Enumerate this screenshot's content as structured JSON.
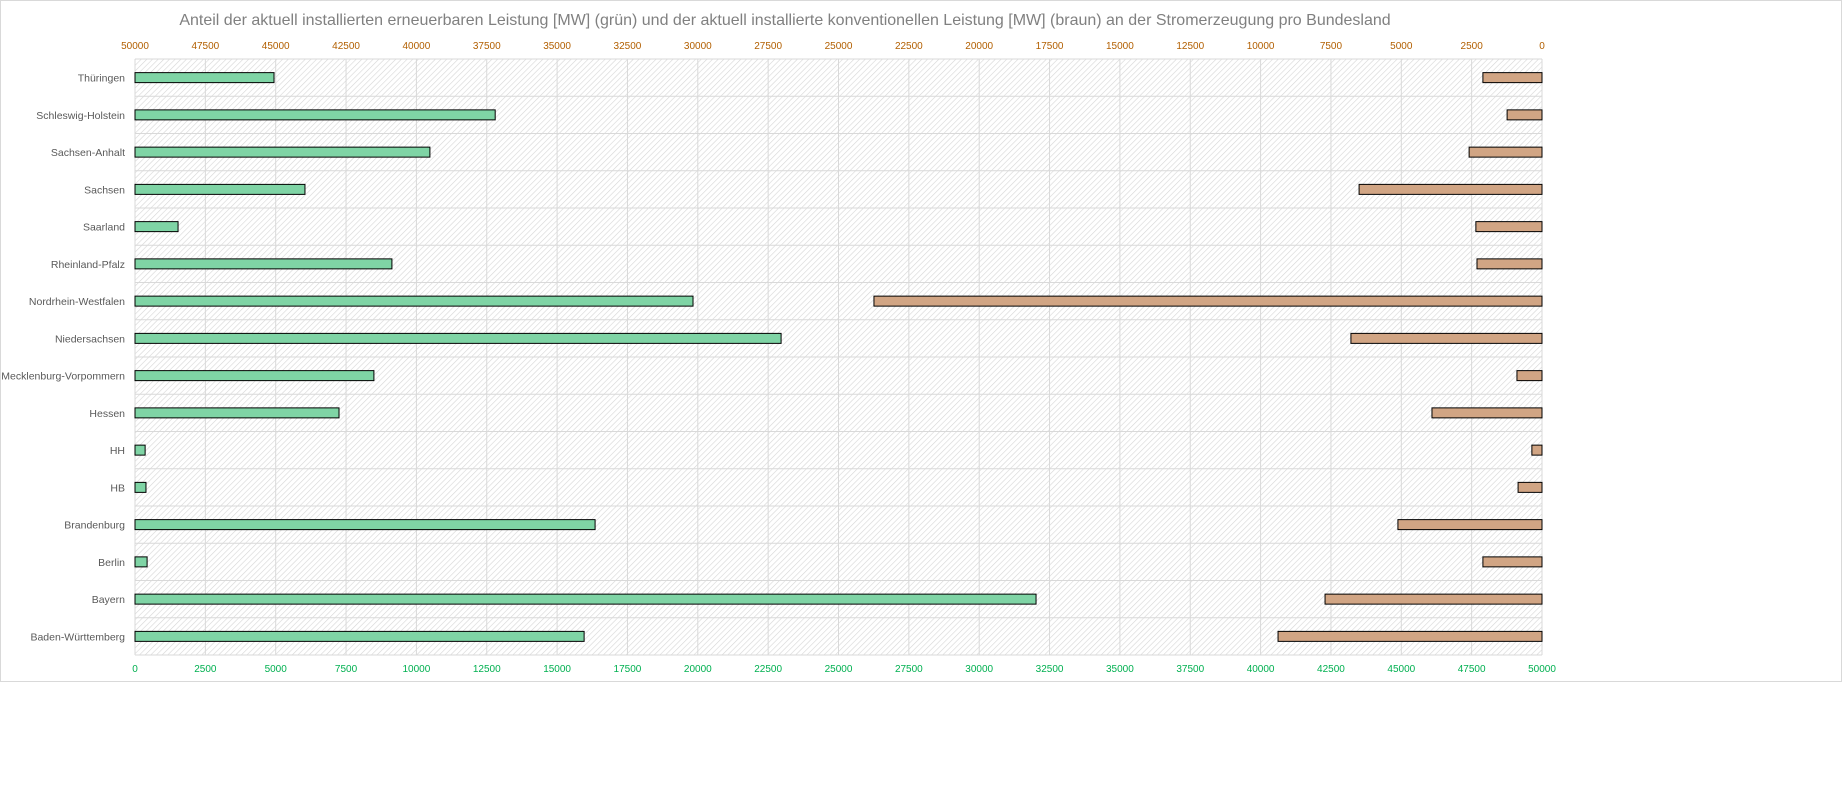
{
  "chart_data": {
    "type": "bar",
    "orientation": "horizontal",
    "title": "Anteil der aktuell installierten erneuerbaren Leistung [MW] (grün) und der aktuell installierte konventionellen Leistung [MW] (braun)  an der Stromerzeugung pro Bundesland",
    "categories": [
      "Thüringen",
      "Schleswig-Holstein",
      "Sachsen-Anhalt",
      "Sachsen",
      "Saarland",
      "Rheinland-Pfalz",
      "Nordrhein-Westfalen",
      "Niedersachsen",
      "Mecklenburg-Vorpommern",
      "Hessen",
      "HH",
      "HB",
      "Brandenburg",
      "Berlin",
      "Bayern",
      "Baden-Württemberg"
    ],
    "series": [
      {
        "color": "#7fd4a5",
        "axis": "bottom",
        "direction": "left-to-right",
        "values": [
          4940,
          12800,
          10480,
          6040,
          1530,
          9130,
          19830,
          22960,
          8490,
          7250,
          360,
          390,
          16350,
          430,
          32020,
          15960
        ]
      },
      {
        "color": "#d1a584",
        "axis": "top",
        "direction": "right-to-left",
        "values": [
          2100,
          1240,
          2590,
          6500,
          2350,
          2310,
          23740,
          6790,
          890,
          3910,
          360,
          850,
          5120,
          2100,
          7710,
          9380
        ]
      }
    ],
    "bottom_axis": {
      "range": [
        0,
        50000
      ],
      "ticks": [
        "0",
        "2500",
        "5000",
        "7500",
        "10000",
        "12500",
        "15000",
        "17500",
        "20000",
        "22500",
        "25000",
        "27500",
        "30000",
        "32500",
        "35000",
        "37500",
        "40000",
        "42500",
        "45000",
        "47500",
        "50000"
      ],
      "color": "#00b050"
    },
    "top_axis": {
      "range": [
        50000,
        0
      ],
      "ticks": [
        "50000",
        "47500",
        "45000",
        "42500",
        "40000",
        "37500",
        "35000",
        "32500",
        "30000",
        "27500",
        "25000",
        "22500",
        "20000",
        "17500",
        "15000",
        "12500",
        "10000",
        "7500",
        "5000",
        "2500",
        "0"
      ],
      "color": "#b25f00"
    },
    "grid": true,
    "legend": "none"
  }
}
